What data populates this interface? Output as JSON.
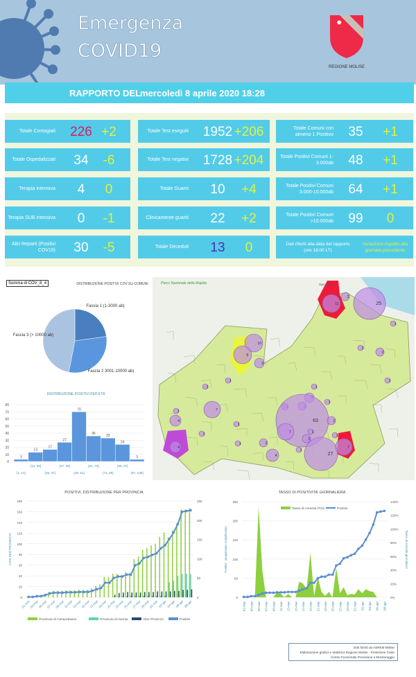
{
  "header": {
    "title_line1": "Emergenza",
    "title_line2": "COVID19",
    "logo_text": "REGIONE MOLISE"
  },
  "report": {
    "label": "RAPPORTO DEL",
    "date": "mercoledì 8 aprile 2020 18:28"
  },
  "colors": {
    "header_bg": "#a7c5dd",
    "accent": "#4fd0e8",
    "delta": "#e4f23a",
    "contagiati": "#d81b60",
    "deceduti": "#4a2fb5",
    "green_bar": "#8dcf3f",
    "isernia": "#5fd3b0",
    "altre": "#2e4a6b",
    "line": "#5b8fd0"
  },
  "stats": {
    "col1": [
      {
        "label": "Totale Contagiati",
        "value": "226",
        "delta": "+2"
      },
      {
        "label": "Totale Ospedalizzati",
        "value": "34",
        "delta": "-6"
      },
      {
        "label": "Terapia intensiva",
        "value": "4",
        "delta": "0"
      },
      {
        "label": "Terapia SUB intensiva",
        "value": "0",
        "delta": "-1"
      },
      {
        "label": "Altri Reparti (Positivi COV19)",
        "value": "30",
        "delta": "-5"
      }
    ],
    "col2": [
      {
        "label": "Totale Test eseguiti",
        "value": "1952",
        "delta": "+206"
      },
      {
        "label": "Totale Test negativi",
        "value": "1728",
        "delta": "+204"
      },
      {
        "label": "Totale Guariti",
        "value": "10",
        "delta": "+4"
      },
      {
        "label": "Clinicamente guariti",
        "value": "22",
        "delta": "+2"
      },
      {
        "label": "Totale Deceduti",
        "value": "13",
        "delta": "0"
      }
    ],
    "col3": [
      {
        "label": "Totale Comuni con almeno 1 Positivo",
        "value": "35",
        "delta": "+1"
      },
      {
        "label": "Totale Positivi Comuni 1-3.000ab",
        "value": "48",
        "delta": "+1"
      },
      {
        "label": "Totale Positivi Comuni 3.000-10.000ab",
        "value": "64",
        "delta": "+1"
      },
      {
        "label": "Totale Positivi Comuni >10.000ab",
        "value": "99",
        "delta": "0"
      }
    ],
    "note": "Dati riferiti alla data del rapporto (ore 18:00 LT)",
    "note_variation": "Variazione rispetto alla giornata precedente"
  },
  "pivot_label": "Somma di COV_8_4",
  "chart_data": [
    {
      "type": "pie",
      "title": "DISTRIBUZIONE POSITIVI COV SU COMUNI",
      "categories": [
        "Fascia 1 (1-3000 ab)",
        "Fascia 2 3001-10000 ab)",
        "Fascia 3 (> 10000 ab)"
      ],
      "values": [
        48,
        64,
        99
      ],
      "colors": [
        "#4a7fbf",
        "#5a96dd",
        "#aac3e0"
      ]
    },
    {
      "type": "bar",
      "title": "DISTRIBUZIONE POSITIVI PER ETA'",
      "categories": [
        "[1, 13]",
        "(13, 25]",
        "(25, 37]",
        "(37, 49]",
        "(49, 61]",
        "(61, 73]",
        "(73, 85]",
        "(85, 97]",
        "(97, 109]"
      ],
      "values": [
        3,
        13,
        17,
        27,
        70,
        36,
        33,
        24,
        3
      ],
      "ylim": [
        0,
        80
      ],
      "yticks": [
        0,
        10,
        20,
        30,
        40,
        50,
        60,
        70,
        80
      ],
      "grid": true
    },
    {
      "type": "bar",
      "title": "POSITIVI, DISTRIBUZIONE PER PROVINCIA",
      "ylabel": "CASI PER PROVINCIA",
      "y2label": "Positivi - progressivo complessivo",
      "ylim": [
        0,
        180
      ],
      "y2lim": [
        0,
        250
      ],
      "yticks": [
        0,
        20,
        40,
        60,
        80,
        100,
        120,
        140,
        160,
        180
      ],
      "y2ticks": [
        0,
        50,
        100,
        150,
        200,
        250
      ],
      "legend": "bottom",
      "x": [
        "01-mar",
        "02-mar",
        "03-mar",
        "04-mar",
        "05-mar",
        "06-mar",
        "07-mar",
        "08-mar",
        "09-mar",
        "10-mar",
        "11-mar",
        "12-mar",
        "13-mar",
        "14-mar",
        "15-mar",
        "16-mar",
        "17-mar",
        "18-mar",
        "19-mar",
        "20-mar",
        "21-mar",
        "22-mar",
        "23-mar",
        "24-mar",
        "25-mar",
        "26-mar",
        "27-mar",
        "28-mar",
        "29-mar",
        "30-mar",
        "31-mar",
        "01-apr",
        "02-apr",
        "03-apr",
        "04-apr",
        "05-apr",
        "06-apr",
        "07-apr",
        "08-apr"
      ],
      "series": [
        {
          "name": "Provincia di Campobasso",
          "type": "bar",
          "values": [
            1,
            1,
            3,
            3,
            6,
            10,
            12,
            12,
            12,
            13,
            13,
            13,
            14,
            14,
            14,
            17,
            21,
            24,
            38,
            38,
            44,
            44,
            42,
            47,
            46,
            71,
            76,
            89,
            92,
            97,
            100,
            113,
            121,
            112,
            125,
            138,
            164,
            164,
            166
          ]
        },
        {
          "name": "Provincia di Isernia",
          "type": "bar",
          "values": [
            0,
            0,
            0,
            0,
            0,
            0,
            0,
            0,
            0,
            0,
            0,
            0,
            0,
            0,
            0,
            0,
            0,
            0,
            0,
            0,
            1,
            1,
            2,
            2,
            3,
            3,
            3,
            3,
            3,
            3,
            3,
            3,
            3,
            28,
            31,
            40,
            44,
            44,
            43
          ]
        },
        {
          "name": "Altre Province",
          "type": "bar",
          "values": [
            0,
            0,
            0,
            0,
            0,
            0,
            0,
            0,
            0,
            0,
            0,
            0,
            0,
            0,
            0,
            0,
            0,
            0,
            0,
            0,
            5,
            8,
            9,
            10,
            9,
            9,
            9,
            10,
            10,
            10,
            11,
            11,
            11,
            11,
            12,
            12,
            14,
            14,
            15
          ]
        },
        {
          "name": "Positivi",
          "type": "line",
          "axis": "right",
          "values": [
            1,
            1,
            3,
            3,
            6,
            10,
            12,
            12,
            12,
            13,
            13,
            13,
            14,
            14,
            14,
            17,
            21,
            24,
            38,
            38,
            50,
            54,
            54,
            59,
            59,
            83,
            88,
            102,
            105,
            110,
            114,
            127,
            135,
            151,
            168,
            190,
            222,
            224,
            226
          ]
        }
      ]
    },
    {
      "type": "area",
      "title": "TASSO DI POSITIVITA' GIORNALIERA",
      "ylabel": "Positivi - progressivo complessivo",
      "y2label": "Tasso di crescita giornaliero",
      "ylim": [
        0,
        250
      ],
      "y2lim": [
        0,
        140
      ],
      "yticks": [
        0,
        50,
        100,
        150,
        200,
        250
      ],
      "y2ticks": [
        "0%",
        "20%",
        "40%",
        "60%",
        "80%",
        "100%",
        "120%",
        "140%"
      ],
      "legend": "top",
      "x": [
        "01-mar",
        "02-mar",
        "03-mar",
        "04-mar",
        "05-mar",
        "06-mar",
        "07-mar",
        "08-mar",
        "09-mar",
        "10-mar",
        "11-mar",
        "12-mar",
        "13-mar",
        "14-mar",
        "15-mar",
        "16-mar",
        "17-mar",
        "18-mar",
        "19-mar",
        "20-mar",
        "21-mar",
        "22-mar",
        "23-mar",
        "24-mar",
        "25-mar",
        "26-mar",
        "27-mar",
        "28-mar",
        "29-mar",
        "30-mar",
        "31-mar",
        "01-apr",
        "02-apr",
        "03-apr",
        "04-apr",
        "05-apr",
        "06-apr",
        "07-apr",
        "08-apr"
      ],
      "series": [
        {
          "name": "Tasso di crescita POS",
          "type": "area",
          "axis": "right",
          "values": [
            0,
            0,
            0,
            0,
            133,
            40,
            0,
            0,
            0,
            8,
            5,
            0,
            5,
            0,
            0,
            23,
            20,
            12,
            65,
            2,
            30,
            8,
            2,
            8,
            0,
            43,
            6,
            15,
            3,
            5,
            4,
            12,
            6,
            12,
            9,
            8,
            0,
            0,
            0
          ]
        },
        {
          "name": "Positivi",
          "type": "line",
          "values": [
            1,
            1,
            3,
            3,
            6,
            10,
            12,
            12,
            12,
            13,
            13,
            13,
            14,
            14,
            14,
            17,
            21,
            24,
            38,
            38,
            50,
            54,
            54,
            59,
            59,
            83,
            88,
            102,
            105,
            110,
            114,
            127,
            135,
            151,
            168,
            190,
            222,
            224,
            226
          ]
        }
      ]
    }
  ],
  "map": {
    "park_label": "Parco Nazionale della Majella",
    "town_label": "San Salvo",
    "markers": [
      "11",
      "2",
      "25",
      "1",
      "10",
      "9",
      "3",
      "1",
      "2",
      "1",
      "1",
      "1",
      "1",
      "3",
      "1",
      "1",
      "2",
      "63",
      "7",
      "1",
      "4",
      "2",
      "1",
      "7",
      "1",
      "2",
      "1",
      "1",
      "4",
      "1",
      "2",
      "1",
      "4",
      "27",
      "7"
    ]
  },
  "footer": {
    "line1": "Dati forniti da ASREM Molise",
    "line2": "Elaborazione grafica e statistica Regione Molise - Protezione Civile",
    "line3": "Centro Funzionale Previsione e Monitoraggio"
  }
}
